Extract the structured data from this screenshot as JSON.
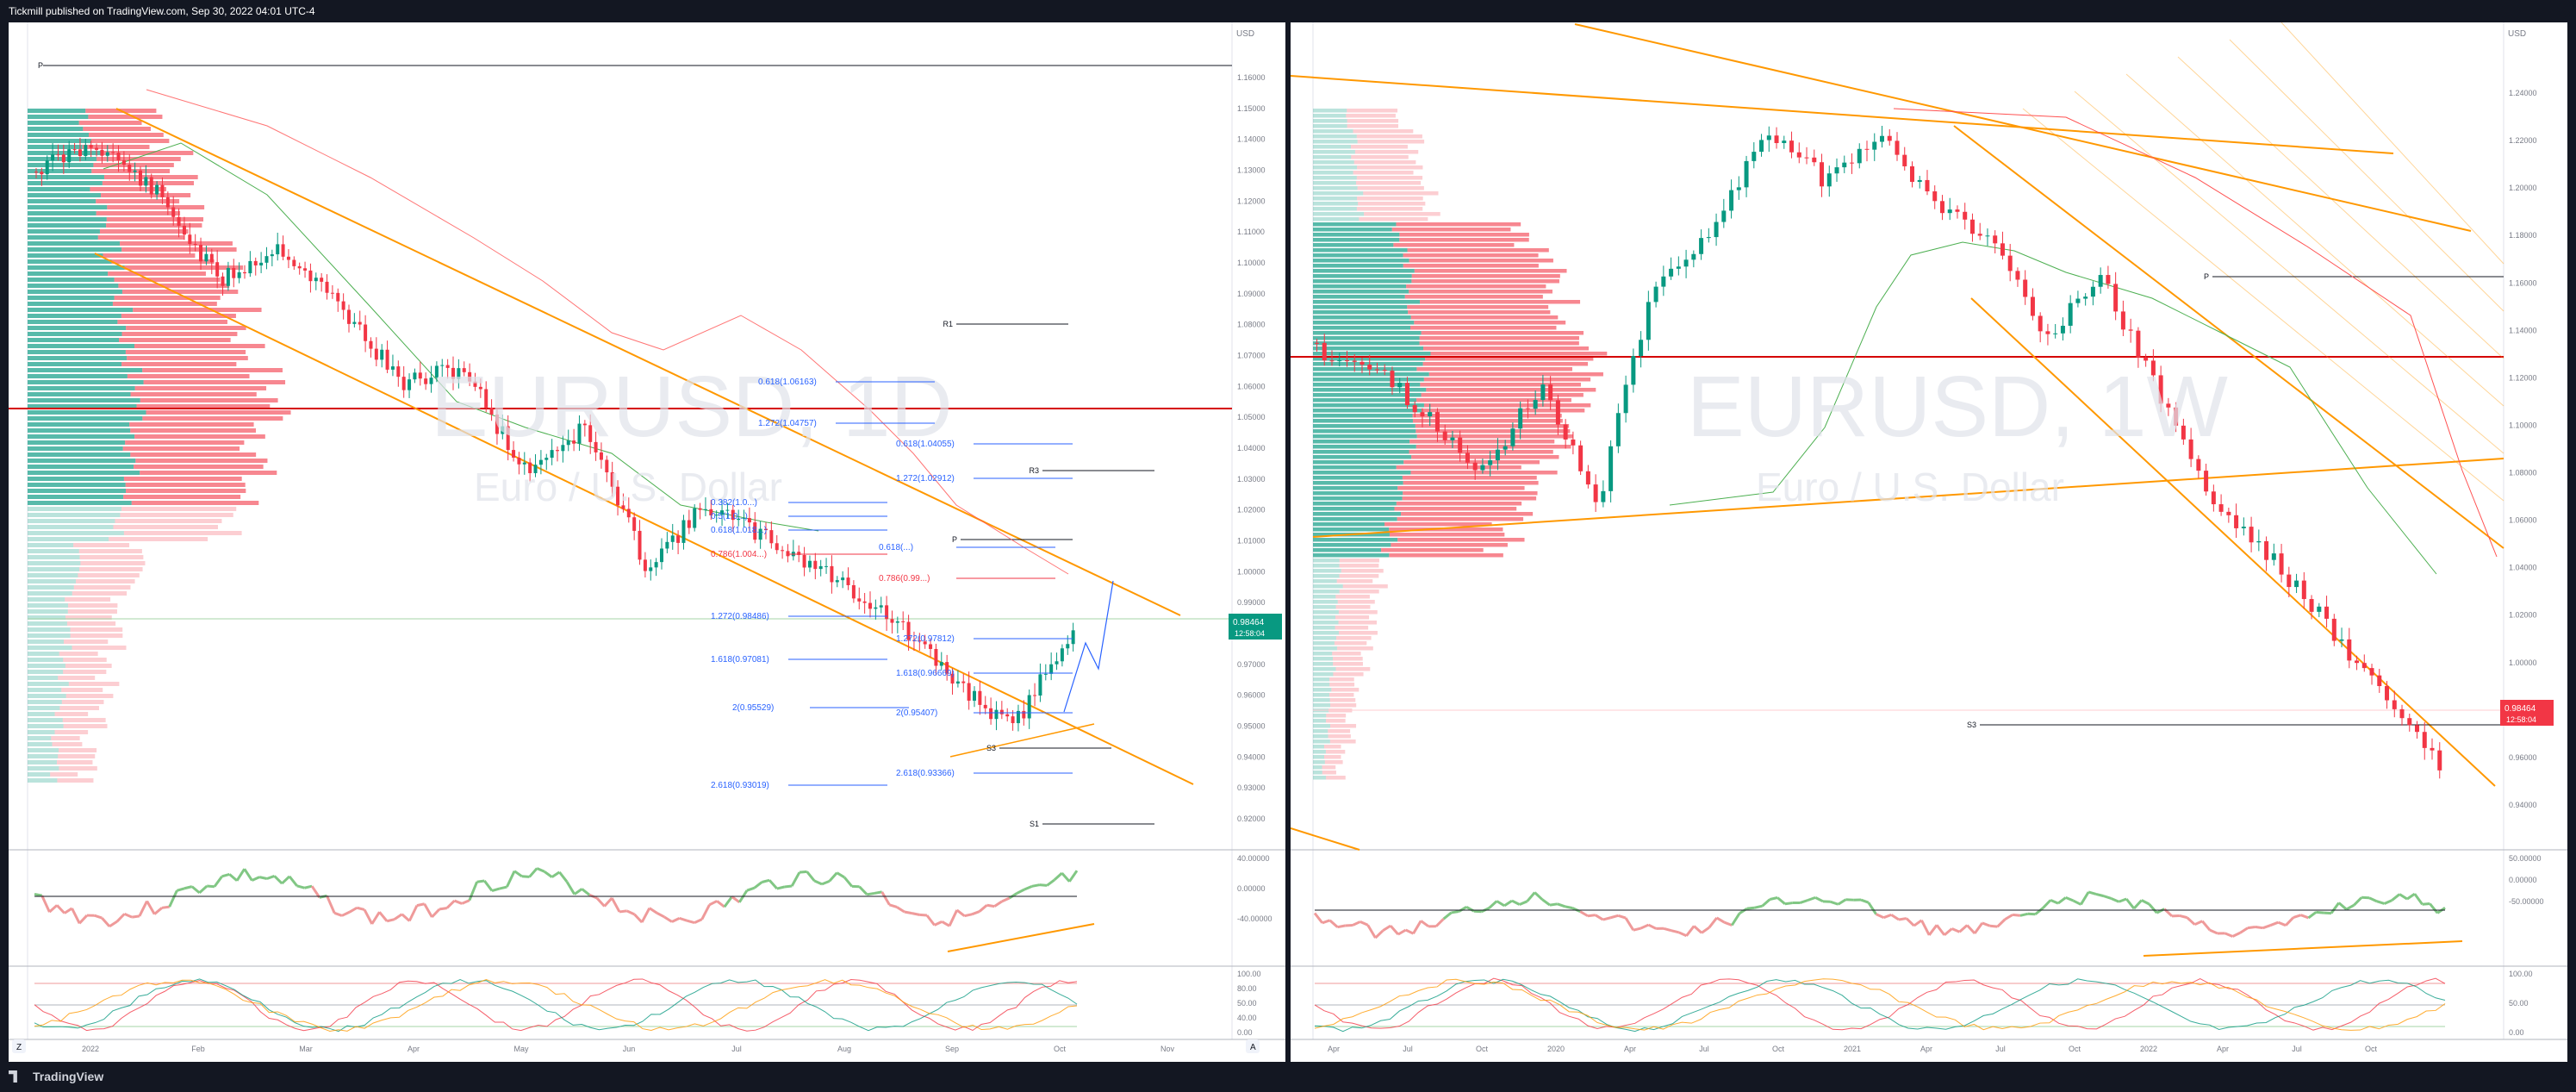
{
  "header": {
    "published": "Tickmill published on TradingView.com, Sep 30, 2022 04:01 UTC-4"
  },
  "footer": {
    "brand": "TradingView"
  },
  "colors": {
    "up": "#089981",
    "down": "#f23645",
    "fib": "#2962ff",
    "trend": "#ff9800",
    "pivot": "#131722"
  },
  "left": {
    "watermark_symbol": "EURUSD, 1D",
    "watermark_name": "Euro / U.S. Dollar",
    "currency": "USD",
    "price_axis": [
      "1.16000",
      "1.15000",
      "1.14000",
      "1.13000",
      "1.12000",
      "1.11000",
      "1.10000",
      "1.09000",
      "1.08000",
      "1.07000",
      "1.06000",
      "1.05000",
      "1.04000",
      "1.03000",
      "1.02000",
      "1.01000",
      "1.00000",
      "0.99000",
      "0.98000",
      "0.97000",
      "0.96000",
      "0.95000",
      "0.94000",
      "0.93000",
      "0.92000"
    ],
    "last_price": "0.98464",
    "countdown": "12:58:04",
    "pivots": [
      "P",
      "R1",
      "R3",
      "P",
      "S3",
      "S1"
    ],
    "fibs": [
      "0.618(1.06163)",
      "1.272(1.04757)",
      "0.618(1.04055)",
      "1.272(1.02912)",
      "0.382(1.0...)",
      "0.5(1.0...)",
      "0.618(1.018...)",
      "0.786(1.004...)",
      "0.618(...)",
      "0.786(0.99...)",
      "1.272(0.98486)",
      "1.272(0.97812)",
      "1.618(0.97081)",
      "1.618(0.96669)",
      "2(0.95529)",
      "2(0.95407)",
      "2.618(0.93366)",
      "2.618(0.93019)"
    ],
    "osc1_axis": [
      "40.00000",
      "0.00000",
      "-40.00000"
    ],
    "osc2_axis": [
      "100.00",
      "80.00",
      "50.00",
      "40.00",
      "0.00"
    ],
    "time_axis": [
      "2022",
      "Feb",
      "Mar",
      "Apr",
      "May",
      "Jun",
      "Jul",
      "Aug",
      "Sep",
      "Oct",
      "Nov"
    ]
  },
  "right": {
    "watermark_symbol": "EURUSD, 1W",
    "watermark_name": "Euro / U.S. Dollar",
    "currency": "USD",
    "price_axis": [
      "1.24000",
      "1.22000",
      "1.20000",
      "1.18000",
      "1.16000",
      "1.14000",
      "1.12000",
      "1.10000",
      "1.08000",
      "1.06000",
      "1.04000",
      "1.02000",
      "1.00000",
      "0.98000",
      "0.96000",
      "0.94000"
    ],
    "last_price": "0.98464",
    "countdown": "12:58:04",
    "pivots": [
      "P",
      "S3"
    ],
    "osc1_axis": [
      "50.00000",
      "0.00000",
      "-50.00000"
    ],
    "osc2_axis": [
      "100.00",
      "50.00",
      "0.00"
    ],
    "time_axis": [
      "Apr",
      "Jul",
      "Oct",
      "2020",
      "Apr",
      "Jul",
      "Oct",
      "2021",
      "Apr",
      "Jul",
      "Oct",
      "2022",
      "Apr",
      "Jul",
      "Oct"
    ]
  },
  "toolbar": {
    "zoom_label": "Z",
    "auto_label": "A"
  }
}
